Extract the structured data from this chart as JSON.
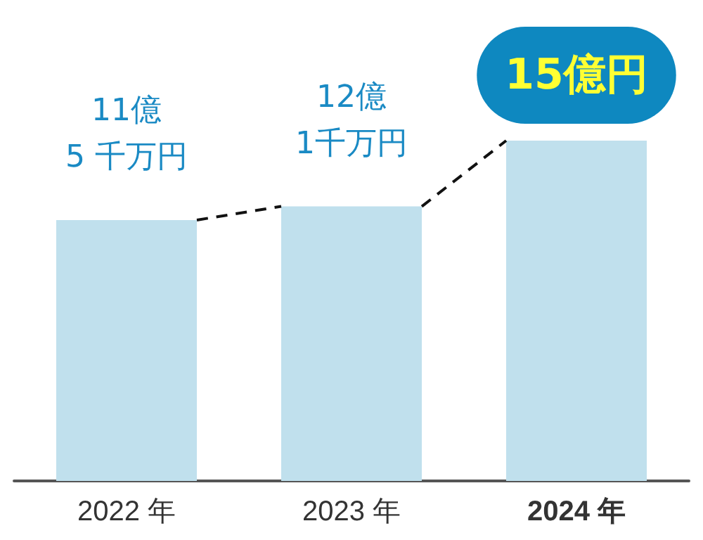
{
  "chart_data": {
    "type": "bar",
    "categories": [
      "2022 年",
      "2023 年",
      "2024 年"
    ],
    "values": [
      11.5,
      12.1,
      15
    ],
    "value_labels": [
      "11億\n5 千万円",
      "12億\n1千万円",
      "15億円"
    ],
    "color": "#c0e0ed"
  }
}
